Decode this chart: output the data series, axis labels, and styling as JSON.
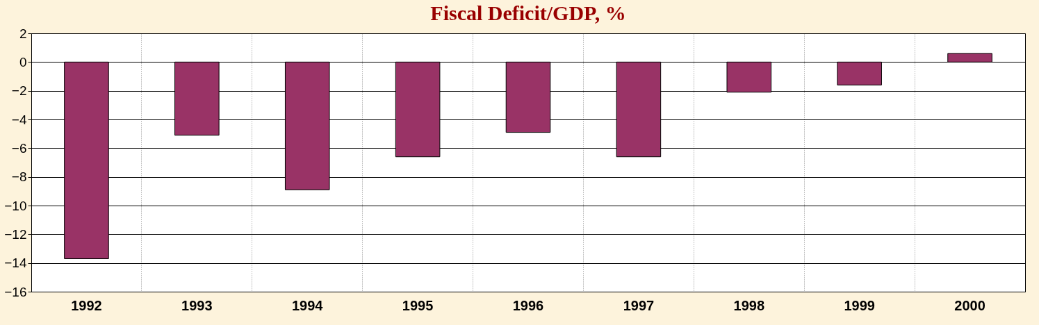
{
  "chart_data": {
    "type": "bar",
    "title": "Fiscal Deficit/GDP, %",
    "categories": [
      "1992",
      "1993",
      "1994",
      "1995",
      "1996",
      "1997",
      "1998",
      "1999",
      "2000"
    ],
    "values": [
      -13.7,
      -5.1,
      -8.9,
      -6.6,
      -4.9,
      -6.6,
      -2.1,
      -1.6,
      0.6
    ],
    "color": "#993366",
    "ylim": [
      -16,
      2
    ],
    "yticks": [
      -16,
      -14,
      -12,
      -10,
      -8,
      -6,
      -4,
      -2,
      0,
      2
    ],
    "grid": true
  }
}
